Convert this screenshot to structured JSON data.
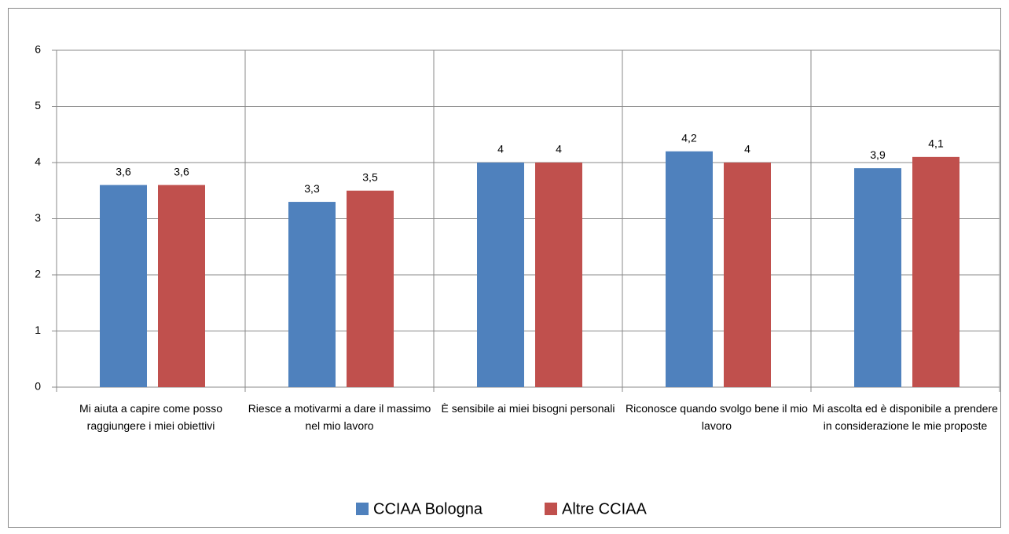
{
  "chart_data": {
    "type": "bar",
    "categories": [
      "Mi aiuta a capire come posso raggiungere i miei obiettivi",
      "Riesce a motivarmi a dare il massimo nel mio lavoro",
      "È sensibile ai miei bisogni personali",
      "Riconosce quando svolgo bene il mio lavoro",
      "Mi ascolta ed è disponibile a prendere in considerazione le mie proposte"
    ],
    "series": [
      {
        "name": "CCIAA Bologna",
        "color": "#4f81bd",
        "values": [
          3.6,
          3.3,
          4,
          4.2,
          3.9
        ],
        "value_labels": [
          "3,6",
          "3,3",
          "4",
          "4,2",
          "3,9"
        ]
      },
      {
        "name": "Altre CCIAA",
        "color": "#c0504d",
        "values": [
          3.6,
          3.5,
          4,
          4,
          4.1
        ],
        "value_labels": [
          "3,6",
          "3,5",
          "4",
          "4",
          "4,1"
        ]
      }
    ],
    "ylim": [
      0,
      6
    ],
    "yticks": [
      0,
      1,
      2,
      3,
      4,
      5,
      6
    ],
    "grid": true,
    "legend": "bottom"
  }
}
